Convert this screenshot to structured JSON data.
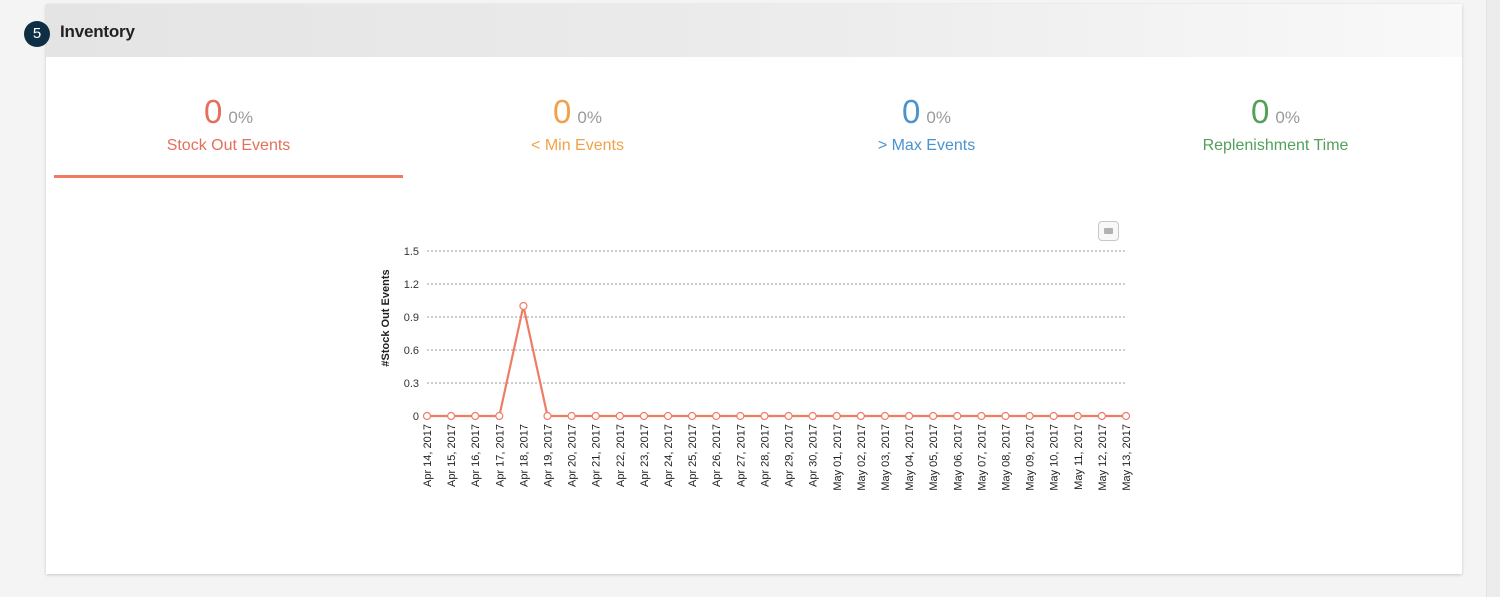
{
  "panel": {
    "title": "Inventory",
    "step_number": "5"
  },
  "tabs": [
    {
      "value": "0",
      "percent": "0%",
      "label": "Stock Out Events",
      "color": "#e46f5b",
      "active": true
    },
    {
      "value": "0",
      "percent": "0%",
      "label": "< Min Events",
      "color": "#f2a14a",
      "active": false
    },
    {
      "value": "0",
      "percent": "0%",
      "label": "> Max Events",
      "color": "#4a93cf",
      "active": false
    },
    {
      "value": "0",
      "percent": "0%",
      "label": "Replenishment Time",
      "color": "#52a05a",
      "active": false
    }
  ],
  "chart_data": {
    "type": "line",
    "ylabel": "#Stock Out Events",
    "xlabel": "",
    "ylim": [
      0,
      1.5
    ],
    "yticks": [
      "0",
      "0.3",
      "0.6",
      "0.9",
      "1.2",
      "1.5"
    ],
    "grid": "horizontal dashed",
    "series_color": "#ef7d65",
    "x": [
      "Apr 14, 2017",
      "Apr 15, 2017",
      "Apr 16, 2017",
      "Apr 17, 2017",
      "Apr 18, 2017",
      "Apr 19, 2017",
      "Apr 20, 2017",
      "Apr 21, 2017",
      "Apr 22, 2017",
      "Apr 23, 2017",
      "Apr 24, 2017",
      "Apr 25, 2017",
      "Apr 26, 2017",
      "Apr 27, 2017",
      "Apr 28, 2017",
      "Apr 29, 2017",
      "Apr 30, 2017",
      "May 01, 2017",
      "May 02, 2017",
      "May 03, 2017",
      "May 04, 2017",
      "May 05, 2017",
      "May 06, 2017",
      "May 07, 2017",
      "May 08, 2017",
      "May 09, 2017",
      "May 10, 2017",
      "May 11, 2017",
      "May 12, 2017",
      "May 13, 2017"
    ],
    "series": [
      {
        "values": [
          0,
          0,
          0,
          0,
          1,
          0,
          0,
          0,
          0,
          0,
          0,
          0,
          0,
          0,
          0,
          0,
          0,
          0,
          0,
          0,
          0,
          0,
          0,
          0,
          0,
          0,
          0,
          0,
          0,
          0
        ]
      }
    ]
  }
}
